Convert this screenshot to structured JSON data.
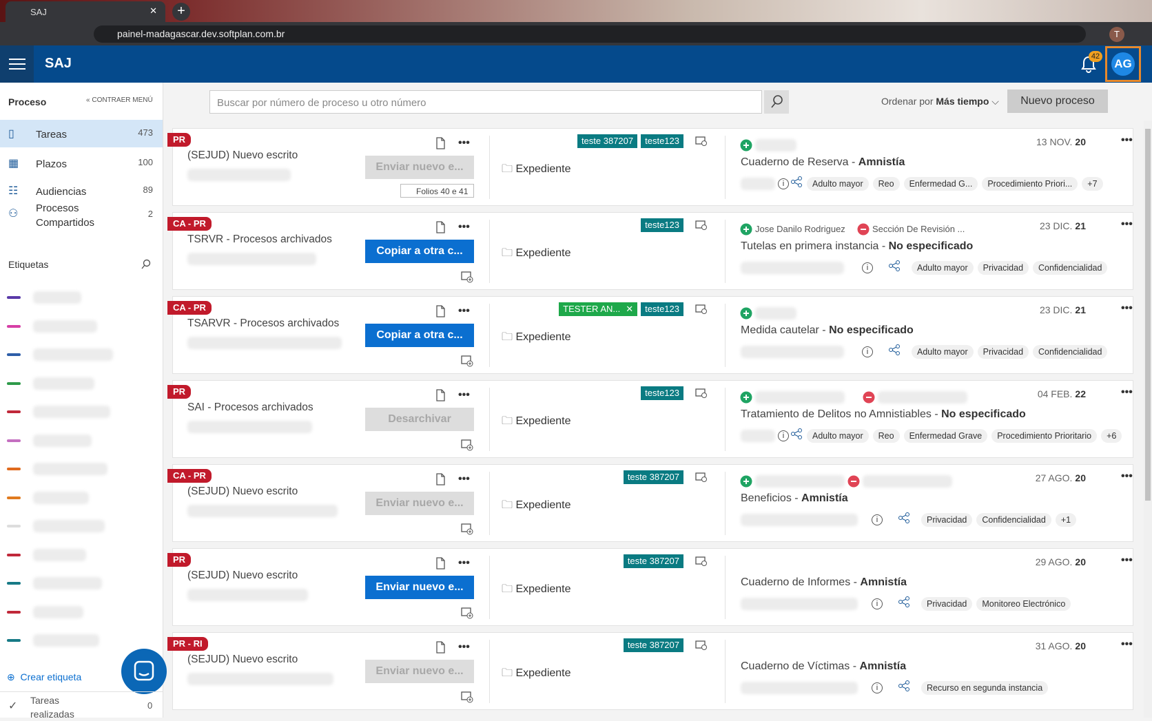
{
  "browser": {
    "tab_title": "SAJ",
    "url": "painel-madagascar.dev.softplan.com.br",
    "profile": "T"
  },
  "header": {
    "app_name": "SAJ",
    "notifications": 42,
    "avatar": "AG"
  },
  "sidebar": {
    "section": "Proceso",
    "collapse": "CONTRAER MENÚ",
    "nav": [
      {
        "label": "Tareas",
        "count": 473
      },
      {
        "label": "Plazos",
        "count": 100
      },
      {
        "label": "Audiencias",
        "count": 89
      },
      {
        "label": "Procesos Compartidos",
        "count": 2
      }
    ],
    "tags_title": "Etiquetas",
    "create_tag": "Crear etiqueta",
    "done": {
      "label": "Tareas realizadas",
      "count": 0
    }
  },
  "toolbar": {
    "search_placeholder": "Buscar por número de proceso u otro número",
    "sort_label": "Ordenar por",
    "sort_value": "Más tiempo",
    "new_button": "Nuevo proceso"
  },
  "cards": {
    "folder_label": "Expediente",
    "separator": " - ",
    "items": [
      {
        "badge": "PR",
        "title": "(SEJUD) Nuevo escrito",
        "button": "Enviar nuevo e...",
        "button_enabled": false,
        "folios": "Folios 40 e 41",
        "tags": [
          "teste 387207",
          "teste123"
        ],
        "actors": [],
        "date": "13 NOV.",
        "year": "20",
        "subject": "Cuaderno de Reserva",
        "status": "Amnistía",
        "labels": [
          "Adulto mayor",
          "Reo",
          "Enfermedad G...",
          "Procedimiento Priori...",
          "+7"
        ]
      },
      {
        "badge": "CA - PR",
        "title": "TSRVR - Procesos archivados",
        "button": "Copiar a otra c...",
        "button_enabled": true,
        "tags": [
          "teste123"
        ],
        "actors": [
          "Jose Danilo Rodriguez",
          "Sección De Revisión ..."
        ],
        "date": "23 DIC.",
        "year": "21",
        "subject": "Tutelas en primera instancia",
        "status": "No especificado",
        "labels": [
          "Adulto mayor",
          "Privacidad",
          "Confidencialidad"
        ]
      },
      {
        "badge": "CA - PR",
        "title": "TSARVR - Procesos archivados",
        "button": "Copiar a otra c...",
        "button_enabled": true,
        "tags": [
          "TESTER AN...",
          "teste123"
        ],
        "actors": [],
        "date": "23 DIC.",
        "year": "21",
        "subject": "Medida cautelar",
        "status": "No especificado",
        "labels": [
          "Adulto mayor",
          "Privacidad",
          "Confidencialidad"
        ]
      },
      {
        "badge": "PR",
        "title": "SAI - Procesos archivados",
        "button": "Desarchivar",
        "button_enabled": false,
        "tags": [
          "teste123"
        ],
        "actors": [],
        "date": "04 FEB.",
        "year": "22",
        "subject": "Tratamiento de Delitos no Amnistiables",
        "status": "No especificado",
        "labels": [
          "Adulto mayor",
          "Reo",
          "Enfermedad Grave",
          "Procedimiento Prioritario",
          "+6"
        ]
      },
      {
        "badge": "CA - PR",
        "title": "(SEJUD) Nuevo escrito",
        "button": "Enviar nuevo e...",
        "button_enabled": false,
        "tags": [
          "teste 387207"
        ],
        "actors": [],
        "date": "27 AGO.",
        "year": "20",
        "subject": "Beneficios",
        "status": "Amnistía",
        "labels": [
          "Privacidad",
          "Confidencialidad",
          "+1"
        ]
      },
      {
        "badge": "PR",
        "title": "(SEJUD) Nuevo escrito",
        "button": "Enviar nuevo e...",
        "button_enabled": true,
        "tags": [
          "teste 387207"
        ],
        "actors": [],
        "date": "29 AGO.",
        "year": "20",
        "subject": "Cuaderno de Informes",
        "status": "Amnistía",
        "labels": [
          "Privacidad",
          "Monitoreo Electrónico"
        ]
      },
      {
        "badge": "PR - RI",
        "title": "(SEJUD) Nuevo escrito",
        "button": "Enviar nuevo e...",
        "button_enabled": false,
        "tags": [
          "teste 387207"
        ],
        "actors": [],
        "date": "31 AGO.",
        "year": "20",
        "subject": "Cuaderno de Víctimas",
        "status": "Amnistía",
        "labels": [
          "Recurso en segunda instancia"
        ]
      }
    ]
  }
}
